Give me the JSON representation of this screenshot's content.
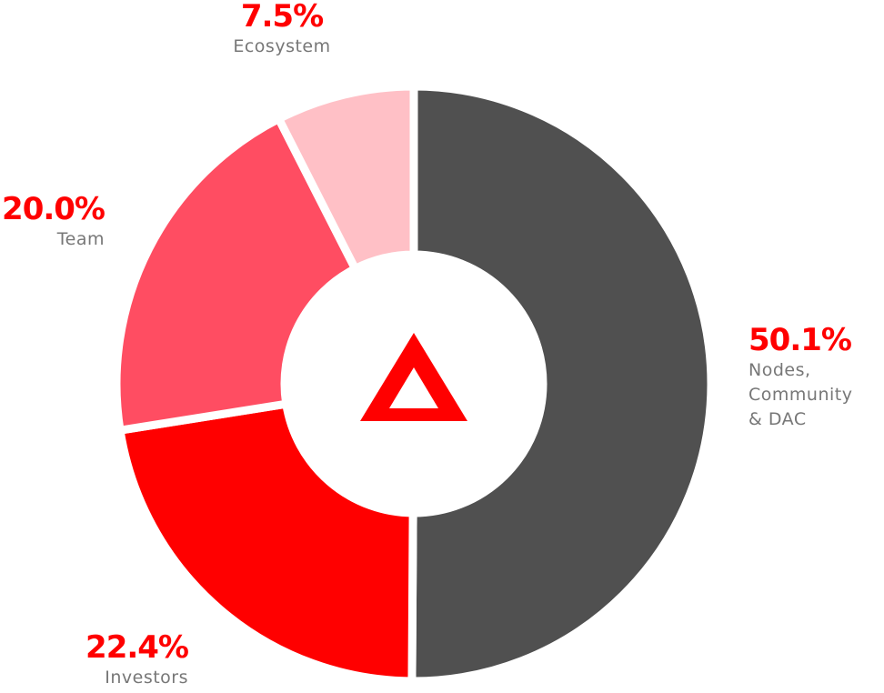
{
  "chart_data": {
    "type": "donut",
    "categories": [
      "Nodes, Community & DAC",
      "Investors",
      "Team",
      "Ecosystem"
    ],
    "values": [
      50.1,
      22.4,
      20.0,
      7.5
    ],
    "value_labels": [
      "50.1%",
      "22.4%",
      "20.0%",
      "7.5%"
    ],
    "colors": [
      "#505050",
      "#ff0000",
      "#ff4d62",
      "#ffc0c6"
    ]
  }
}
